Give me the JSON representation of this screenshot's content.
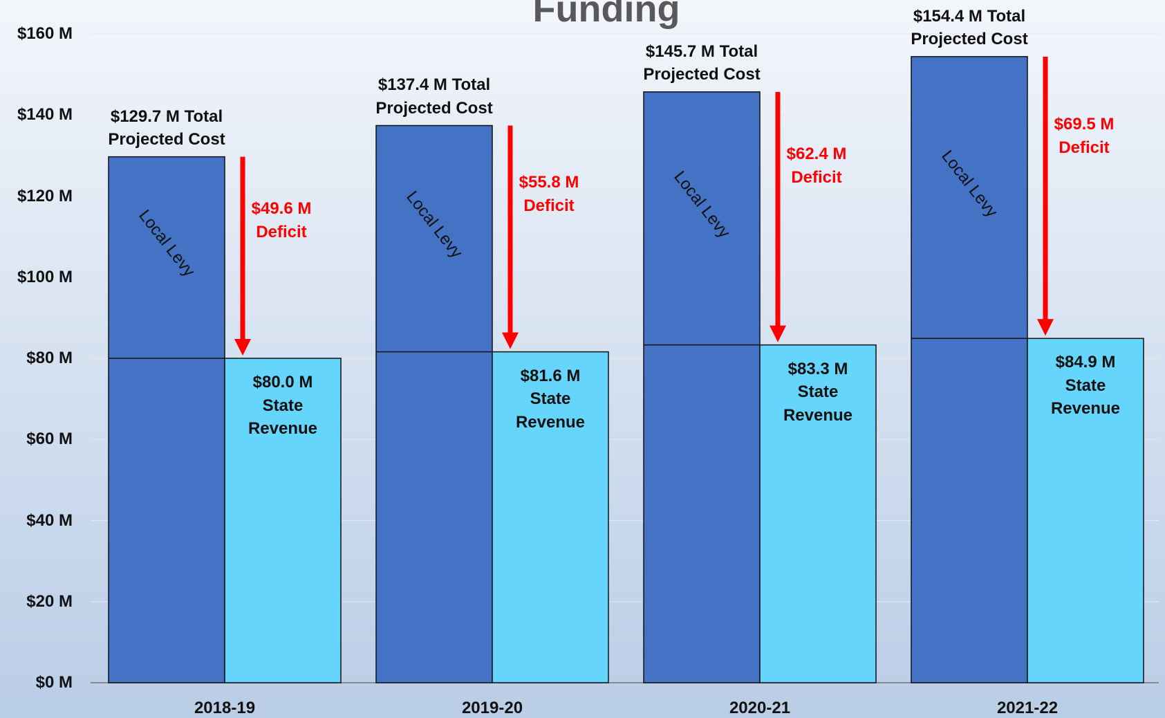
{
  "chart_data": {
    "type": "bar",
    "title": "Funding",
    "categories": [
      "2018-19",
      "2019-20",
      "2020-21",
      "2021-22"
    ],
    "series": [
      {
        "name": "Total Projected Cost",
        "color": "#4472c4",
        "values": [
          129.7,
          137.4,
          145.7,
          154.4
        ],
        "value_labels": [
          "$129.7 M",
          "$137.4 M",
          "$145.7 M",
          "$154.4 M"
        ]
      },
      {
        "name": "State Revenue",
        "color": "#66d5fb",
        "values": [
          80.0,
          81.6,
          83.3,
          84.9
        ],
        "value_labels": [
          "$80.0 M",
          "$81.6 M",
          "$83.3 M",
          "$84.9 M"
        ]
      },
      {
        "name": "Deficit",
        "color": "#ff0000",
        "values": [
          49.6,
          55.8,
          62.4,
          69.5
        ],
        "value_labels": [
          "$49.6 M",
          "$55.8 M",
          "$62.4 M",
          "$69.5 M"
        ]
      }
    ],
    "bar_annotation": "Local Levy",
    "ylim": [
      0,
      160
    ],
    "yticks": [
      {
        "value": 0,
        "label": "$0 M"
      },
      {
        "value": 20,
        "label": "$20 M"
      },
      {
        "value": 40,
        "label": "$40 M"
      },
      {
        "value": 60,
        "label": "$60 M"
      },
      {
        "value": 80,
        "label": "$80 M"
      },
      {
        "value": 100,
        "label": "$100 M"
      },
      {
        "value": 120,
        "label": "$120 M"
      },
      {
        "value": 140,
        "label": "$140 M"
      },
      {
        "value": 160,
        "label": "$160 M"
      }
    ],
    "grid": true
  }
}
